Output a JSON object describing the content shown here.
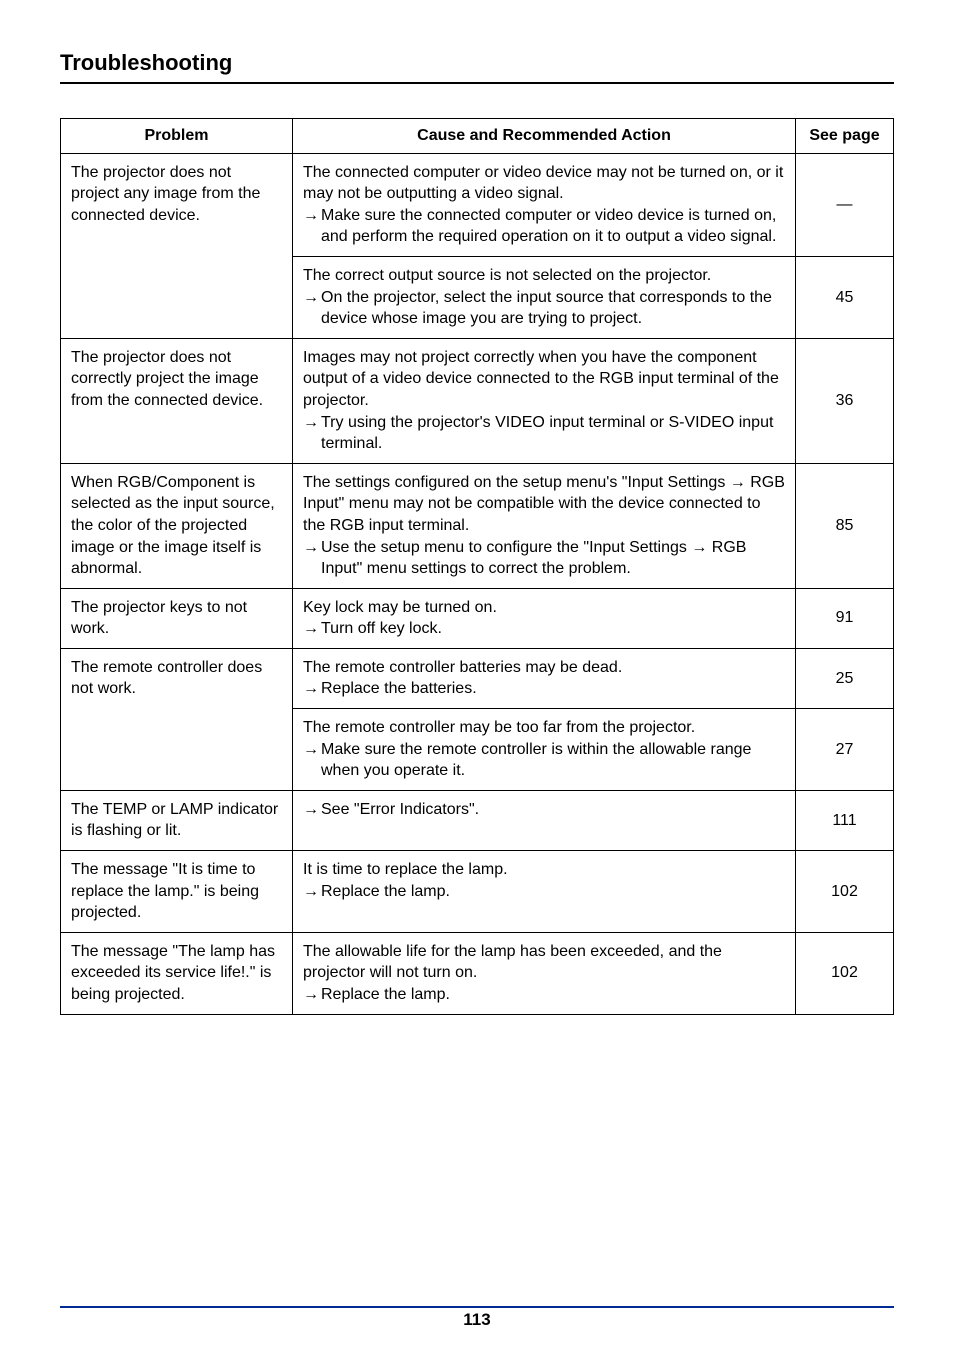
{
  "page": {
    "title": "Troubleshooting",
    "number": "113"
  },
  "table": {
    "headers": {
      "problem": "Problem",
      "cause": "Cause and Recommended Action",
      "seepage": "See page"
    },
    "rows": [
      {
        "problem": "The projector does not project any image from the connected device.",
        "cause_intro": "The connected computer or video device may not be turned on, or it may not be outputting a video signal.",
        "action1": "Make sure the connected computer or video device is turned on, and perform the required operation on it to output a video signal.",
        "page": "—"
      },
      {
        "cause_intro": "The correct output source is not selected on the projector.",
        "action1": "On the projector, select the input source that corresponds to the device whose image you are trying to project.",
        "page": "45"
      },
      {
        "problem": "The projector does not correctly project the image from the connected device.",
        "cause_intro": "Images may not project correctly when you have the component output of a video device connected to the RGB input terminal of the projector.",
        "action1": "Try using the projector's VIDEO input terminal or S-VIDEO input terminal.",
        "page": "36"
      },
      {
        "problem": "When RGB/Component is selected as the input source, the color of the projected image or the image itself is abnormal.",
        "cause_intro": "The settings configured on the setup menu's \"Input Settings → RGB Input\" menu may not be compatible with the device connected to the RGB input terminal.",
        "action1": "Use the setup menu to configure the \"Input Settings → RGB Input\" menu settings to correct the problem.",
        "page": "85"
      },
      {
        "problem": "The projector keys to not work.",
        "cause_intro": "Key lock may be turned on.",
        "action1": "Turn off key lock.",
        "page": "91"
      },
      {
        "problem": "The remote controller does not work.",
        "cause_intro": "The remote controller batteries may be dead.",
        "action1": "Replace the batteries.",
        "page": "25"
      },
      {
        "cause_intro": "The remote controller may be too far from the projector.",
        "action1": "Make sure the remote controller is within the allowable range when you operate it.",
        "page": "27"
      },
      {
        "problem": "The TEMP or LAMP indicator is flashing or lit.",
        "action1": "See \"Error Indicators\".",
        "page": "111"
      },
      {
        "problem": "The message \"It is time to replace the lamp.\" is being projected.",
        "cause_intro": "It is time to replace the lamp.",
        "action1": "Replace the lamp.",
        "page": "102"
      },
      {
        "problem": "The message \"The lamp has exceeded its service life!.\" is being projected.",
        "cause_intro": "The allowable life for the lamp has been exceeded, and the projector will not turn on.",
        "action1": "Replace the lamp.",
        "page": "102"
      }
    ]
  },
  "glyphs": {
    "arrow": "→"
  },
  "colors": {
    "rule": "#002a96"
  }
}
